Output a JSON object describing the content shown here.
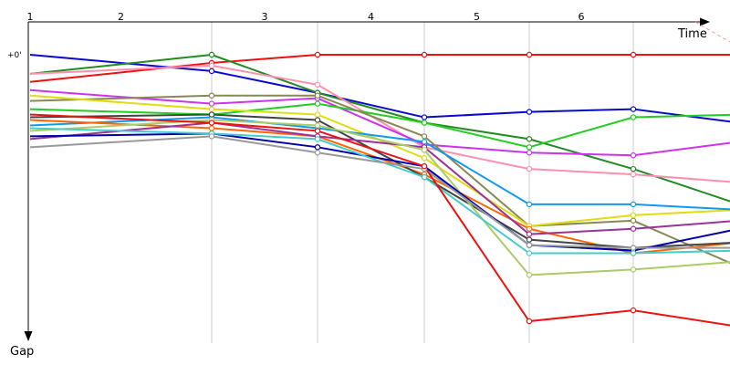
{
  "chart_data": {
    "type": "line",
    "xlabel": "Time",
    "ylabel": "Gap",
    "y_tick_label": "+0'",
    "grid": true,
    "laps": [
      {
        "label": "1",
        "end": 0
      },
      {
        "label": "2",
        "end": 1
      },
      {
        "label": "3",
        "end": 2
      },
      {
        "label": "4",
        "end": 3
      },
      {
        "label": "5",
        "end": 4
      },
      {
        "label": "6",
        "end": 5
      },
      {
        "label": "",
        "end": 6
      }
    ],
    "pit_stops": [
      [
        [
          2,
          0
        ],
        [
          2,
          1
        ]
      ],
      [
        [
          2,
          1
        ],
        [
          2,
          2
        ]
      ],
      [
        [
          3,
          0
        ],
        [
          3,
          2
        ]
      ],
      [
        [
          4,
          0
        ],
        [
          4,
          3
        ]
      ],
      [
        [
          5,
          0
        ],
        [
          5,
          3
        ]
      ]
    ],
    "series": [
      {
        "color": "#ee1111",
        "values": [
          0.1,
          0.03,
          0.0,
          0.0,
          0.0,
          0.0,
          0.0
        ]
      },
      {
        "color": "#0a0acc",
        "values": [
          0.0,
          0.06,
          0.14,
          0.23,
          0.21,
          0.2,
          0.25
        ]
      },
      {
        "color": "#228b22",
        "values": [
          0.07,
          0.0,
          0.14,
          0.25,
          0.31,
          0.42,
          0.55
        ]
      },
      {
        "color": "#ff8faf",
        "values": [
          0.07,
          0.04,
          0.11,
          0.34,
          0.42,
          0.44,
          0.47
        ]
      },
      {
        "color": "#cc33ee",
        "values": [
          0.13,
          0.18,
          0.16,
          0.33,
          0.36,
          0.37,
          0.32
        ]
      },
      {
        "color": "#22cc22",
        "values": [
          0.2,
          0.22,
          0.18,
          0.25,
          0.34,
          0.23,
          0.22
        ]
      },
      {
        "color": "#888855",
        "values": [
          0.17,
          0.15,
          0.15,
          0.3,
          0.63,
          0.61,
          0.78
        ]
      },
      {
        "color": "#dddd11",
        "values": [
          0.15,
          0.2,
          0.22,
          0.38,
          0.63,
          0.59,
          0.57
        ]
      },
      {
        "color": "#1199ee",
        "values": [
          0.26,
          0.23,
          0.27,
          0.32,
          0.55,
          0.55,
          0.57
        ]
      },
      {
        "color": "#ff6600",
        "values": [
          0.24,
          0.27,
          0.3,
          0.44,
          0.64,
          0.73,
          0.69
        ]
      },
      {
        "color": "#444444",
        "values": [
          0.23,
          0.22,
          0.24,
          0.45,
          0.68,
          0.71,
          0.69
        ]
      },
      {
        "color": "#993399",
        "values": [
          0.31,
          0.25,
          0.3,
          0.34,
          0.66,
          0.64,
          0.61
        ]
      },
      {
        "color": "#aacc66",
        "values": [
          0.28,
          0.24,
          0.26,
          0.35,
          0.81,
          0.79,
          0.76
        ]
      },
      {
        "color": "#0000aa",
        "values": [
          0.3,
          0.29,
          0.34,
          0.41,
          0.7,
          0.72,
          0.64
        ]
      },
      {
        "color": "#44cccc",
        "values": [
          0.27,
          0.29,
          0.31,
          0.45,
          0.73,
          0.73,
          0.72
        ]
      },
      {
        "color": "#999999",
        "values": [
          0.34,
          0.3,
          0.36,
          0.42,
          0.7,
          0.71,
          0.71
        ]
      },
      {
        "color": "#ee1111",
        "values": [
          0.22,
          0.25,
          0.28,
          0.41,
          0.98,
          0.94,
          1.0
        ]
      }
    ]
  }
}
